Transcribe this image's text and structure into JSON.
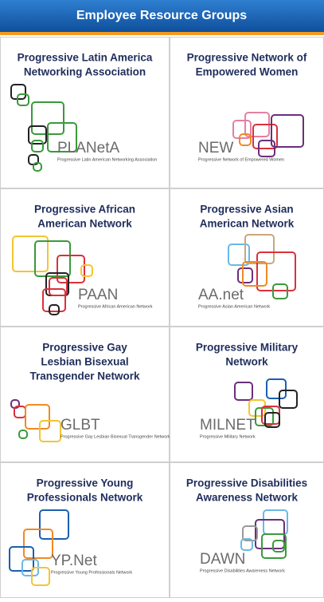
{
  "header": {
    "title": "Employee Resource Groups"
  },
  "groups": [
    {
      "title_lines": [
        "Progressive Latin America",
        "Networking Association"
      ],
      "acronym": "PLANetA",
      "tagline": "Progressive Latin American Networking Association"
    },
    {
      "title_lines": [
        "Progressive Network of",
        "Empowered Women"
      ],
      "acronym": "NEW",
      "tagline": "Progressive Network of Empowered Women"
    },
    {
      "title_lines": [
        "Progressive African",
        "American Network"
      ],
      "acronym": "PAAN",
      "tagline": "Progressive African American Network"
    },
    {
      "title_lines": [
        "Progressive Asian",
        "American Network"
      ],
      "acronym": "AA.net",
      "tagline": "Progressive Asian American Network"
    },
    {
      "title_lines": [
        "Progressive Gay",
        "Lesbian Bisexual",
        "Transgender Network"
      ],
      "acronym": "GLBT",
      "tagline": "Progressive Gay Lesbian Bisexual Transgender Network"
    },
    {
      "title_lines": [
        "Progressive Military",
        "Network"
      ],
      "acronym": "MILNET",
      "tagline": "Progressive Military Network"
    },
    {
      "title_lines": [
        "Progressive Young",
        "Professionals Network"
      ],
      "acronym": "YP.Net",
      "tagline": "Progressive Young Professionals Network"
    },
    {
      "title_lines": [
        "Progressive Disabilities",
        "Awareness Network"
      ],
      "acronym": "DAWN",
      "tagline": "Progressive Disabilities Awareness Network"
    }
  ]
}
